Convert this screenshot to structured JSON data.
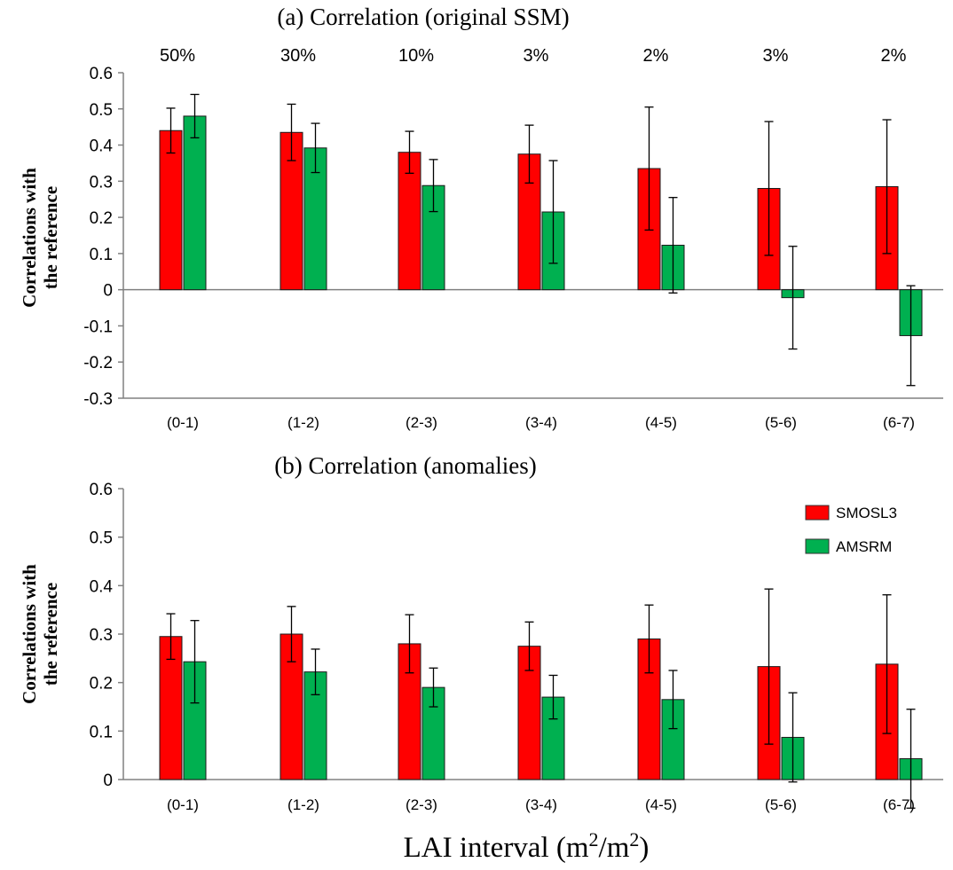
{
  "figure": {
    "xlabel": "LAI interval (m",
    "xlabel_sup1": "2",
    "xlabel_mid": "/m",
    "xlabel_sup2": "2",
    "xlabel_end": ")"
  },
  "legend": {
    "items": [
      {
        "name": "SMOSL3",
        "color": "#ff0000"
      },
      {
        "name": "AMSRM",
        "color": "#00b050"
      }
    ]
  },
  "colors": {
    "smos": "#ff0000",
    "amsrm": "#00b050",
    "axis": "#808080",
    "error_bar": "#000000"
  },
  "chart_data": [
    {
      "type": "bar",
      "title": "(a) Correlation (original SSM)",
      "ylabel_line1": "Correlations with",
      "ylabel_line2": "the reference",
      "categories": [
        "(0-1)",
        "(1-2)",
        "(2-3)",
        "(3-4)",
        "(4-5)",
        "(5-6)",
        "(6-7)"
      ],
      "category_percentages": [
        "50%",
        "30%",
        "10%",
        "3%",
        "2%",
        "3%",
        "2%"
      ],
      "ylim": [
        -0.3,
        0.6
      ],
      "yticks": [
        "0.6",
        "0.5",
        "0.4",
        "0.3",
        "0.2",
        "0.1",
        "0",
        "-0.1",
        "-0.2",
        "-0.3"
      ],
      "ytick_values": [
        0.6,
        0.5,
        0.4,
        0.3,
        0.2,
        0.1,
        0,
        -0.1,
        -0.2,
        -0.3
      ],
      "grid": false,
      "series": [
        {
          "name": "SMOSL3",
          "values": [
            0.44,
            0.435,
            0.38,
            0.375,
            0.335,
            0.28,
            0.285
          ],
          "error": [
            0.062,
            0.078,
            0.058,
            0.08,
            0.17,
            0.185,
            0.185
          ]
        },
        {
          "name": "AMSRM",
          "values": [
            0.48,
            0.392,
            0.288,
            0.215,
            0.123,
            -0.022,
            -0.127
          ],
          "error": [
            0.06,
            0.068,
            0.072,
            0.142,
            0.132,
            0.142,
            0.138
          ]
        }
      ]
    },
    {
      "type": "bar",
      "title": "(b) Correlation (anomalies)",
      "ylabel_line1": "Correlations  with",
      "ylabel_line2": "the reference",
      "categories": [
        "(0-1)",
        "(1-2)",
        "(2-3)",
        "(3-4)",
        "(4-5)",
        "(5-6)",
        "(6-7)"
      ],
      "ylim": [
        0,
        0.6
      ],
      "yticks": [
        "0.6",
        "0.5",
        "0.4",
        "0.3",
        "0.2",
        "0.1",
        "0"
      ],
      "ytick_values": [
        0.6,
        0.5,
        0.4,
        0.3,
        0.2,
        0.1,
        0
      ],
      "grid": false,
      "legend_position": "top-right",
      "series": [
        {
          "name": "SMOSL3",
          "values": [
            0.295,
            0.3,
            0.28,
            0.275,
            0.29,
            0.233,
            0.238
          ],
          "error": [
            0.047,
            0.057,
            0.06,
            0.05,
            0.07,
            0.16,
            0.143
          ]
        },
        {
          "name": "AMSRM",
          "values": [
            0.243,
            0.222,
            0.19,
            0.17,
            0.165,
            0.087,
            0.043
          ],
          "error": [
            0.085,
            0.047,
            0.04,
            0.045,
            0.06,
            0.092,
            0.102
          ]
        }
      ]
    }
  ]
}
